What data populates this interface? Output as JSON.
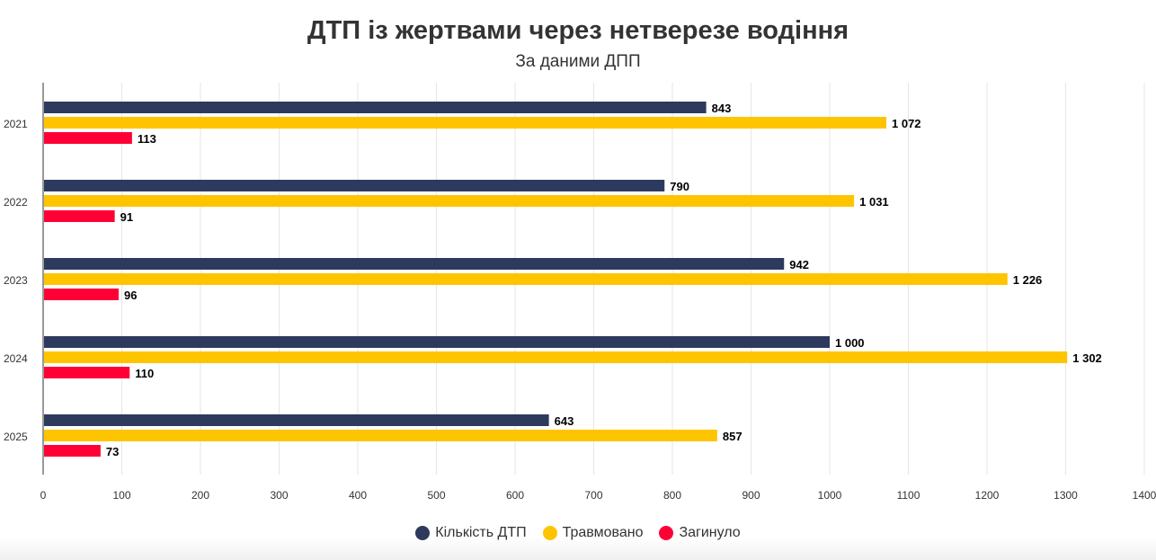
{
  "chart_data": {
    "type": "bar",
    "orientation": "horizontal",
    "title": "ДТП із жертвами через нетверезе водіння",
    "subtitle": "За даними ДПП",
    "categories": [
      "2021",
      "2022",
      "2023",
      "2024",
      "2025"
    ],
    "series": [
      {
        "name": "Кількість ДТП",
        "color": "#2d3a5e",
        "values": [
          843,
          790,
          942,
          1000,
          643
        ],
        "labels": [
          "843",
          "790",
          "942",
          "1 000",
          "643"
        ]
      },
      {
        "name": "Травмовано",
        "color": "#ffc400",
        "values": [
          1072,
          1031,
          1226,
          1302,
          857
        ],
        "labels": [
          "1 072",
          "1 031",
          "1 226",
          "1 302",
          "857"
        ]
      },
      {
        "name": "Загинуло",
        "color": "#ff0036",
        "values": [
          113,
          91,
          96,
          110,
          73
        ],
        "labels": [
          "113",
          "91",
          "96",
          "110",
          "73"
        ]
      }
    ],
    "xlim": [
      0,
      1400
    ],
    "xticks": [
      0,
      100,
      200,
      300,
      400,
      500,
      600,
      700,
      800,
      900,
      1000,
      1100,
      1200,
      1300,
      1400
    ],
    "grid": true,
    "legend": "bottom"
  }
}
